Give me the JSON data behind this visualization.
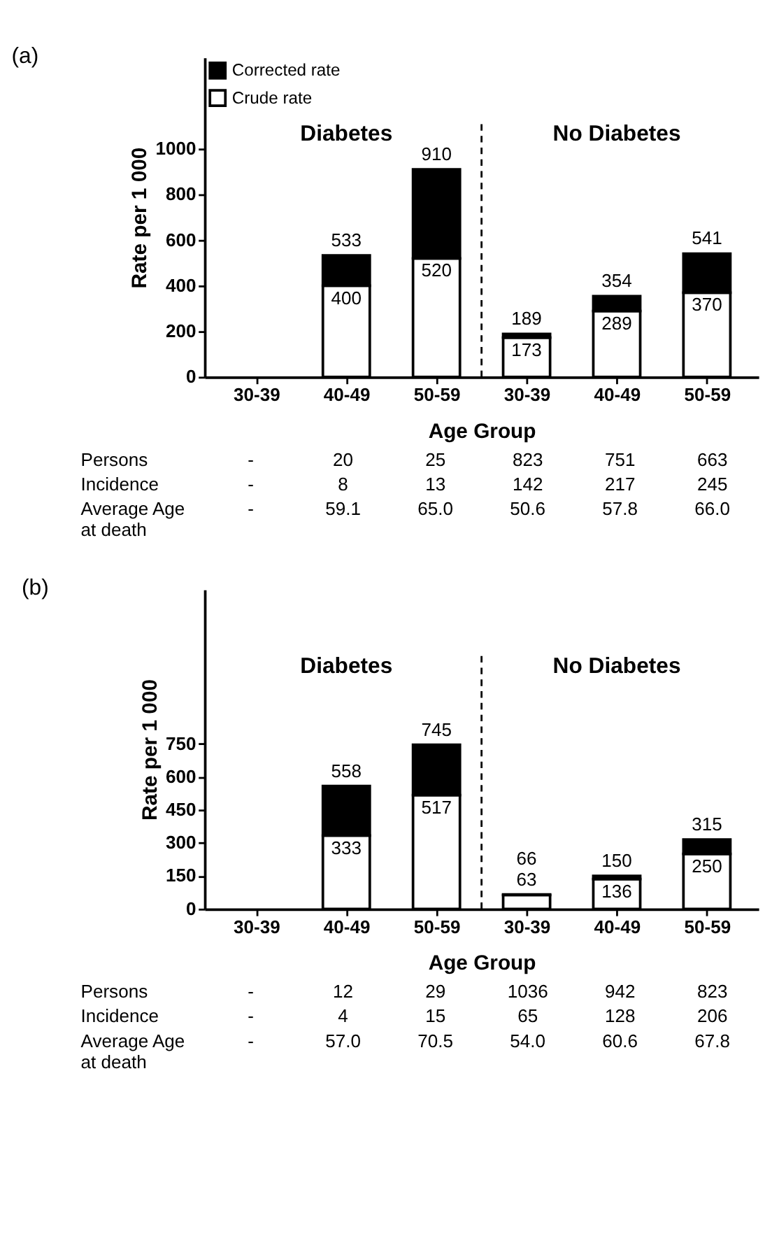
{
  "chart_data": [
    {
      "type": "bar",
      "title": "(a)",
      "xlabel": "Age Group",
      "ylabel": "Rate per 1 000",
      "categories": [
        "30-39",
        "40-49",
        "50-59",
        "30-39",
        "40-49",
        "50-59"
      ],
      "stacked": true,
      "series": [
        {
          "name": "Crude rate",
          "color": "#ffffff",
          "values": [
            null,
            400,
            520,
            173,
            289,
            370
          ],
          "value_labels": [
            null,
            "400",
            "520",
            "173",
            "289",
            "370"
          ]
        },
        {
          "name": "Corrected rate",
          "color": "#000000",
          "values": [
            null,
            133,
            390,
            16,
            65,
            171
          ]
        }
      ],
      "totals": [
        null,
        "533",
        "910",
        "189",
        "354",
        "541"
      ],
      "ylim": [
        0,
        1400
      ],
      "yticks": [
        0,
        200,
        400,
        600,
        800,
        1000
      ],
      "grid": false,
      "legend": "top left",
      "annotations": [
        "Diabetes",
        "No Diabetes",
        "Persons",
        "-",
        "20",
        "25",
        "823",
        "751",
        "663",
        "Incidence",
        "-",
        "8",
        "13",
        "142",
        "217",
        "245",
        "Average Age\nat death",
        "-",
        "59.1",
        "65.0",
        "50.6",
        "57.8",
        "66.0"
      ]
    },
    {
      "type": "bar",
      "title": "(b)",
      "xlabel": "Age Group",
      "ylabel": "Rate per 1 000",
      "categories": [
        "30-39",
        "40-49",
        "50-59",
        "30-39",
        "40-49",
        "50-59"
      ],
      "stacked": true,
      "series": [
        {
          "name": "Crude rate",
          "color": "#ffffff",
          "values": [
            null,
            333,
            517,
            63,
            136,
            250
          ],
          "value_labels": [
            null,
            "333",
            "517",
            "63",
            "136",
            "250"
          ]
        },
        {
          "name": "Corrected rate",
          "color": "#000000",
          "values": [
            null,
            225,
            228,
            3,
            14,
            65
          ]
        }
      ],
      "totals": [
        null,
        "558",
        "745",
        "66",
        "150",
        "315"
      ],
      "ylim": [
        0,
        1450
      ],
      "yticks": [
        0,
        150,
        300,
        450,
        600,
        750
      ],
      "grid": false,
      "legend": "top left",
      "annotations": [
        "Diabetes",
        "No Diabetes",
        "Persons",
        "-",
        "12",
        "29",
        "1036",
        "942",
        "823",
        "Incidence",
        "-",
        "4",
        "15",
        "65",
        "128",
        "206",
        "Average Age\nat death",
        "-",
        "57.0",
        "70.5",
        "54.0",
        "60.6",
        "67.8"
      ]
    }
  ]
}
